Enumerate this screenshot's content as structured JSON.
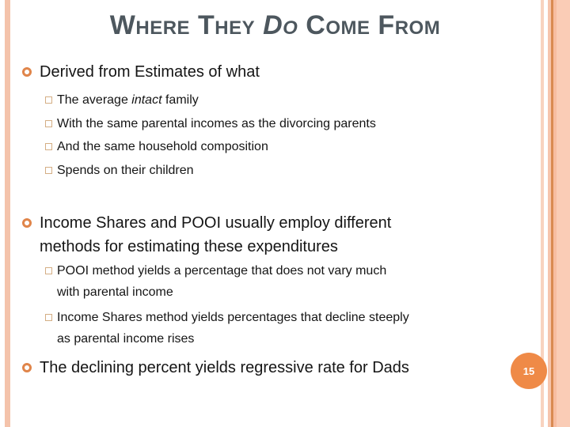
{
  "title": {
    "pre": "Where They ",
    "italic": "Do",
    "post": " Come From"
  },
  "page_number": "15",
  "colors": {
    "title_text": "#4d575e",
    "body_text": "#151515",
    "bullet_ring_orange": "#e0854a",
    "checkbox_tan": "#d4ae84",
    "page_badge_orange": "#ef8a47",
    "left_stripe_salmon": "#f4c3ab",
    "right_stripe_light": "#f8d3bf",
    "right_stripe_dark": "#d98a52"
  },
  "bullets": {
    "b1": {
      "text": "Derived from Estimates of what",
      "items": [
        {
          "pre": "The average ",
          "italic": "intact",
          "post": " family"
        },
        {
          "text": "With the same parental incomes as the divorcing parents"
        },
        {
          "text": "And the same household composition"
        },
        {
          "text": "Spends on their children"
        }
      ]
    },
    "b2": {
      "lines": [
        "Income Shares and POOI usually employ different",
        "methods for estimating these expenditures"
      ],
      "items": [
        {
          "lines": [
            "POOI method yields a percentage that does not vary much",
            "with parental income"
          ]
        },
        {
          "lines": [
            "Income Shares method yields percentages that decline steeply",
            "as parental income rises"
          ]
        }
      ]
    },
    "b3": {
      "text": "The declining percent yields regressive rate for Dads"
    }
  }
}
